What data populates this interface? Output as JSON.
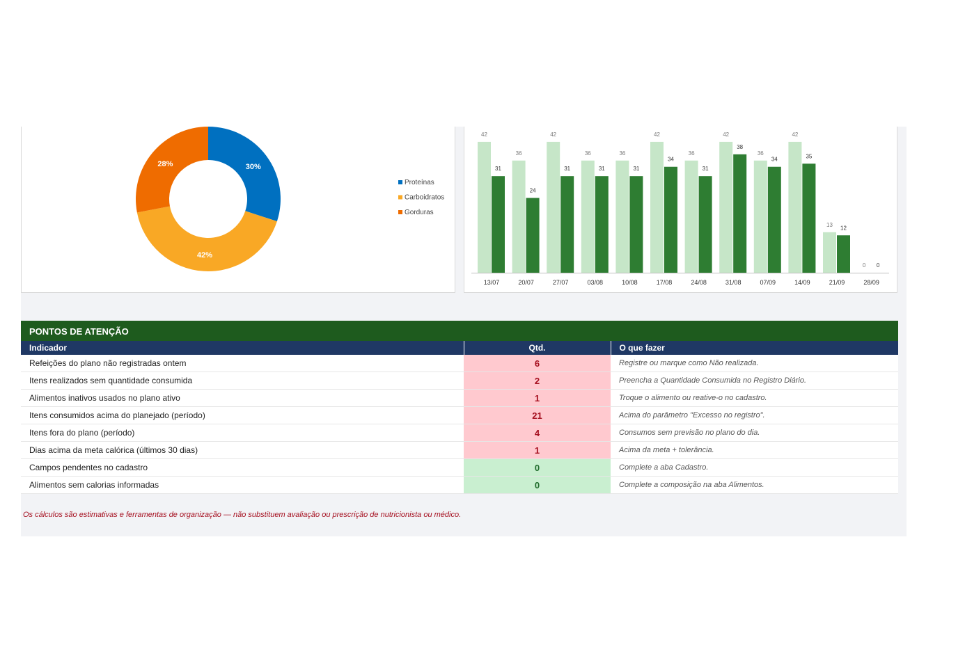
{
  "macros_chart": {
    "type": "pie",
    "slices": [
      {
        "label": "Proteínas",
        "value": 30,
        "value_label": "30%",
        "color": "#0070c0"
      },
      {
        "label": "Carboidratos",
        "value": 42,
        "value_label": "42%",
        "color": "#f9a825"
      },
      {
        "label": "Gorduras",
        "value": 28,
        "value_label": "28%",
        "color": "#ef6c00"
      }
    ],
    "legend_position": "right"
  },
  "chart_data": {
    "type": "bar",
    "categories": [
      "13/07",
      "20/07",
      "27/07",
      "03/08",
      "10/08",
      "17/08",
      "24/08",
      "31/08",
      "07/09",
      "14/09",
      "21/09",
      "28/09"
    ],
    "series": [
      {
        "values": [
          42,
          36,
          42,
          36,
          36,
          42,
          36,
          42,
          36,
          42,
          13,
          0
        ],
        "color": "#c6e6c8"
      },
      {
        "values": [
          31,
          24,
          31,
          31,
          31,
          34,
          31,
          38,
          34,
          35,
          12,
          0
        ],
        "color": "#2e7d32"
      }
    ],
    "ylim": [
      0,
      46
    ],
    "grid": false
  },
  "attention": {
    "title": "PONTOS DE ATENÇÃO",
    "headers": {
      "indicator": "Indicador",
      "qty": "Qtd.",
      "action": "O que fazer"
    },
    "rows": [
      {
        "indicator": "Refeições do plano não registradas ontem",
        "qty": "6",
        "status": "bad",
        "action": "Registre ou marque como Não realizada."
      },
      {
        "indicator": "Itens realizados sem quantidade consumida",
        "qty": "2",
        "status": "bad",
        "action": "Preencha a Quantidade Consumida no Registro Diário."
      },
      {
        "indicator": "Alimentos inativos usados no plano ativo",
        "qty": "1",
        "status": "bad",
        "action": "Troque o alimento ou reative-o no cadastro."
      },
      {
        "indicator": "Itens consumidos acima do planejado (período)",
        "qty": "21",
        "status": "bad",
        "action": "Acima do parâmetro \"Excesso no registro\"."
      },
      {
        "indicator": "Itens fora do plano (período)",
        "qty": "4",
        "status": "bad",
        "action": "Consumos sem previsão no plano do dia."
      },
      {
        "indicator": "Dias acima da meta calórica (últimos 30 dias)",
        "qty": "1",
        "status": "bad",
        "action": "Acima da meta + tolerância."
      },
      {
        "indicator": "Campos pendentes no cadastro",
        "qty": "0",
        "status": "ok",
        "action": "Complete a aba Cadastro."
      },
      {
        "indicator": "Alimentos sem calorias informadas",
        "qty": "0",
        "status": "ok",
        "action": "Complete a composição na aba Alimentos."
      }
    ]
  },
  "disclaimer": "Os cálculos são estimativas e ferramentas de organização — não substituem avaliação ou prescrição de nutricionista ou médico."
}
